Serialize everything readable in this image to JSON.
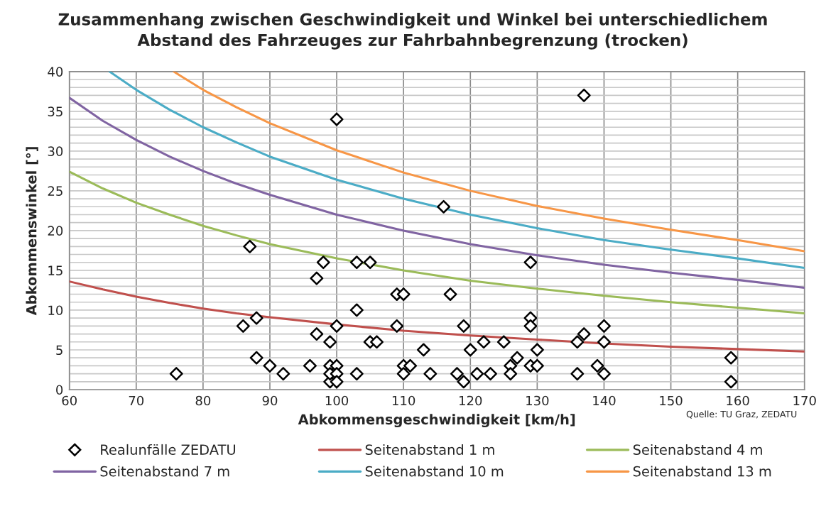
{
  "chart_data": {
    "type": "scatter",
    "title": "Zusammenhang zwischen Geschwindigkeit und Winkel bei unterschiedlichem\nAbstand des Fahrzeuges zur Fahrbahnbegrenzung (trocken)",
    "xlabel": "Abkommensgeschwindigkeit [km/h]",
    "ylabel": "Abkommenswinkel [°]",
    "annotations": [
      "Quelle: TU Graz, ZEDATU"
    ],
    "xlim": [
      60,
      170
    ],
    "xticks": [
      60,
      70,
      80,
      90,
      100,
      110,
      120,
      130,
      140,
      150,
      160,
      170
    ],
    "ylim": [
      0,
      40
    ],
    "yticks": [
      0,
      {
        "value": 1,
        "label": null
      },
      {
        "value": 2,
        "label": null
      },
      {
        "value": 3,
        "label": null
      },
      {
        "value": 4,
        "label": null
      },
      5,
      {
        "value": 6,
        "label": null
      },
      {
        "value": 7,
        "label": null
      },
      {
        "value": 8,
        "label": null
      },
      {
        "value": 9,
        "label": null
      },
      10,
      {
        "value": 11,
        "label": null
      },
      {
        "value": 12,
        "label": null
      },
      {
        "value": 13,
        "label": null
      },
      {
        "value": 14,
        "label": null
      },
      15,
      {
        "value": 16,
        "label": null
      },
      {
        "value": 17,
        "label": null
      },
      {
        "value": 18,
        "label": null
      },
      {
        "value": 19,
        "label": null
      },
      20,
      {
        "value": 21,
        "label": null
      },
      {
        "value": 22,
        "label": null
      },
      {
        "value": 23,
        "label": null
      },
      {
        "value": 24,
        "label": null
      },
      25,
      {
        "value": 26,
        "label": null
      },
      {
        "value": 27,
        "label": null
      },
      {
        "value": 28,
        "label": null
      },
      {
        "value": 29,
        "label": null
      },
      30,
      {
        "value": 31,
        "label": null
      },
      {
        "value": 32,
        "label": null
      },
      {
        "value": 33,
        "label": null
      },
      {
        "value": 34,
        "label": null
      },
      35,
      {
        "value": 36,
        "label": null
      },
      {
        "value": 37,
        "label": null
      },
      {
        "value": 38,
        "label": null
      },
      {
        "value": 39,
        "label": null
      },
      40
    ],
    "grid": true,
    "legend": "bottom",
    "series": [
      {
        "name": "Realunfälle ZEDATU",
        "marker": "diamond",
        "color": "#000000",
        "x": [
          76,
          86,
          87,
          88,
          88,
          90,
          92,
          96,
          97,
          97,
          98,
          99,
          99,
          99,
          99,
          100,
          100,
          100,
          100,
          100,
          103,
          103,
          103,
          105,
          105,
          106,
          109,
          109,
          110,
          110,
          110,
          111,
          113,
          114,
          116,
          117,
          118,
          119,
          119,
          120,
          121,
          122,
          123,
          125,
          126,
          126,
          127,
          129,
          129,
          129,
          129,
          130,
          130,
          136,
          136,
          137,
          137,
          139,
          140,
          140,
          140,
          159,
          159
        ],
        "values": [
          2,
          8,
          18,
          9,
          4,
          3,
          2,
          3,
          14,
          7,
          16,
          6,
          3,
          1,
          2,
          34,
          8,
          3,
          2,
          1,
          16,
          10,
          2,
          16,
          6,
          6,
          12,
          8,
          12,
          3,
          2,
          3,
          5,
          2,
          23,
          12,
          2,
          8,
          1,
          5,
          2,
          6,
          2,
          6,
          3,
          2,
          4,
          16,
          9,
          8,
          3,
          5,
          3,
          6,
          2,
          37,
          7,
          3,
          8,
          6,
          2,
          4,
          1
        ]
      },
      {
        "name": "Seitenabstand 1 m",
        "type": "line",
        "marker": "none",
        "color": "#c0504d",
        "x": [
          60,
          65,
          70,
          75,
          80,
          85,
          90,
          100,
          110,
          120,
          130,
          140,
          150,
          160,
          170
        ],
        "values": [
          13.6,
          12.6,
          11.7,
          10.9,
          10.2,
          9.6,
          9.1,
          8.2,
          7.4,
          6.8,
          6.3,
          5.8,
          5.4,
          5.1,
          4.8
        ]
      },
      {
        "name": "Seitenabstand 4 m",
        "type": "line",
        "marker": "none",
        "color": "#9bbb59",
        "x": [
          60,
          65,
          70,
          75,
          80,
          85,
          90,
          100,
          110,
          120,
          130,
          140,
          150,
          160,
          170
        ],
        "values": [
          27.4,
          25.3,
          23.5,
          22.0,
          20.6,
          19.4,
          18.3,
          16.5,
          15.0,
          13.7,
          12.7,
          11.8,
          11.0,
          10.3,
          9.6
        ]
      },
      {
        "name": "Seitenabstand 7 m",
        "type": "line",
        "marker": "none",
        "color": "#8064a2",
        "x": [
          60,
          65,
          70,
          75,
          80,
          85,
          90,
          100,
          110,
          120,
          130,
          140,
          150,
          160,
          170
        ],
        "values": [
          36.7,
          33.8,
          31.4,
          29.3,
          27.5,
          25.9,
          24.5,
          22.0,
          20.0,
          18.3,
          16.9,
          15.7,
          14.7,
          13.8,
          12.8
        ]
      },
      {
        "name": "Seitenabstand 10 m",
        "type": "line",
        "marker": "none",
        "color": "#4bacc6",
        "x": [
          66,
          70,
          75,
          80,
          85,
          90,
          100,
          110,
          120,
          130,
          140,
          150,
          160,
          170
        ],
        "values": [
          40,
          37.7,
          35.2,
          33.0,
          31.1,
          29.3,
          26.4,
          24.0,
          22.0,
          20.3,
          18.8,
          17.6,
          16.5,
          15.3
        ]
      },
      {
        "name": "Seitenabstand 13 m",
        "type": "line",
        "marker": "none",
        "color": "#f79646",
        "x": [
          75.6,
          80,
          85,
          90,
          100,
          110,
          120,
          130,
          140,
          150,
          160,
          170
        ],
        "values": [
          40,
          37.7,
          35.5,
          33.5,
          30.1,
          27.3,
          25.0,
          23.1,
          21.5,
          20.1,
          18.8,
          17.4
        ]
      }
    ]
  }
}
